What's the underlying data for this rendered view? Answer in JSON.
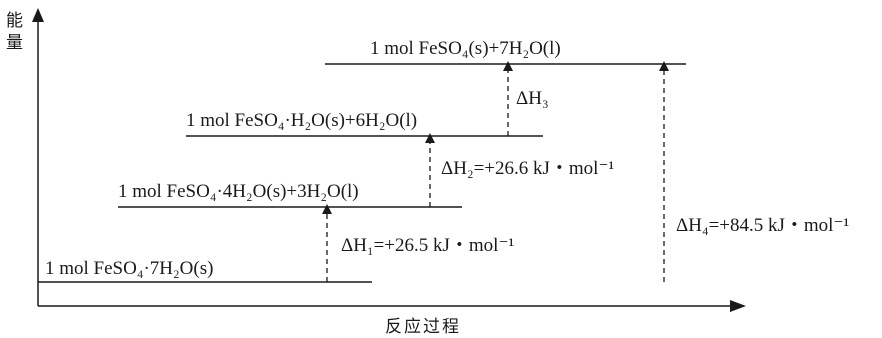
{
  "axes": {
    "y_label": "能量",
    "x_label": "反应过程"
  },
  "levels": [
    {
      "label": "1 mol FeSO₄·7H₂O(s)"
    },
    {
      "label": "1 mol FeSO₄·4H₂O(s)+3H₂O(l)"
    },
    {
      "label": "1 mol FeSO₄·H₂O(s)+6H₂O(l)"
    },
    {
      "label": "1 mol FeSO₄(s)+7H₂O(l)"
    }
  ],
  "transitions": [
    {
      "label": "ΔH₁=+26.5 kJ・mol⁻¹",
      "value_kj_per_mol": 26.5
    },
    {
      "label": "ΔH₂=+26.6 kJ・mol⁻¹",
      "value_kj_per_mol": 26.6
    },
    {
      "label": "ΔH₃"
    },
    {
      "label": "ΔH₄=+84.5 kJ・mol⁻¹",
      "value_kj_per_mol": 84.5
    }
  ],
  "colors": {
    "ink": "#1a1a1a"
  }
}
